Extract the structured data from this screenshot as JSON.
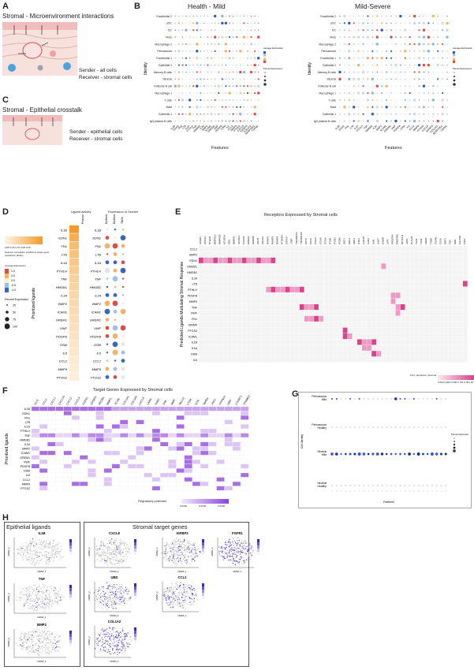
{
  "panels": {
    "A": "A",
    "B": "B",
    "C": "C",
    "D": "D",
    "E": "E",
    "F": "F",
    "G": "G",
    "H": "H"
  },
  "A": {
    "title": "Stromal - Microenvironment interactions",
    "sender": "Sender - all cells",
    "receiver": "Receiver - stromal cells"
  },
  "C": {
    "title": "Stromal - Epithelial crosstalk",
    "sender": "Sender - epithelial cells",
    "receiver": "Receiver - stromal cells"
  },
  "B": {
    "left_title": "Health - Mild",
    "right_title": "Mild-Severe",
    "ylabel": "Identity",
    "xlabel": "Features",
    "rows": [
      "Endothelial 2",
      "pDC",
      "DC",
      "TAOs",
      "Macrophage 2",
      "Perivascular",
      "Endothelial 1",
      "Epithelial 2",
      "Memory B cells",
      "Stromal",
      "Follicular B cell",
      "Macrophage 1",
      "T cells",
      "Mast",
      "Epithelial 1",
      "IgG plasma B cells"
    ],
    "left_features": [
      "IL1B",
      "EDN1",
      "FN1",
      "LTB",
      "IL1A",
      "PTHLH",
      "TNF",
      "HMGB1",
      "IL34",
      "BMP2",
      "ICAM1",
      "GREM1",
      "VWF",
      "PDGFB",
      "OSM",
      "IL6",
      "CCL2",
      "MMP9",
      "PTGS2",
      "CXCL8",
      "IGFBP3",
      "COL1A2",
      "SERPINE1",
      "TGFB1"
    ],
    "right_features": [
      "IL1B",
      "EDN1",
      "FN1",
      "LTB",
      "IL1A",
      "PTHLH",
      "TNF",
      "HMGB1",
      "IL34",
      "BMP2",
      "ICAM1",
      "GREM1",
      "VWF",
      "PDGFB",
      "OSM",
      "IL6",
      "CCL2",
      "MMP9",
      "PTGS2",
      "CXCL8",
      "IGFBP3",
      "COL1A2",
      "SERPINE1",
      "TGFB1"
    ],
    "legend_avg": "Average Expression",
    "legend_pct": "Percent Expressed"
  },
  "D": {
    "col_ligand": "Ligand activity",
    "col_expr": "Expression in Sender",
    "pearson_label": "Pearson",
    "senders": [
      "Epithelial 1",
      "Epithelial 2",
      "TAOs"
    ],
    "ylabel": "Prioritized ligands",
    "ligands": [
      "IL1B",
      "EDN1",
      "FN1",
      "LTB",
      "IL1A",
      "PTHLH",
      "TNF",
      "HMGB1",
      "IL34",
      "BMP2",
      "ICAM1",
      "GREM1",
      "VWF",
      "PDGFB",
      "OSM",
      "IL6",
      "CCL2",
      "MMP9",
      "PTGS2"
    ],
    "pearson": [
      0.085,
      0.078,
      0.072,
      0.07,
      0.068,
      0.066,
      0.064,
      0.063,
      0.062,
      0.061,
      0.06,
      0.059,
      0.058,
      0.057,
      0.056,
      0.055,
      0.054,
      0.053,
      0.052
    ],
    "pearson_ticks": "0.05 0.06 0.07 0.08 0.09",
    "pearson_legend": "Pearson correlation coefficient target gene (prediction ability)",
    "avg_legend": "Average Expression",
    "avg_ticks": [
      "1.0",
      "0.5",
      "0.0",
      "-0.5",
      "-1.0"
    ],
    "pct_legend": "Percent Expressed",
    "pct_ticks": [
      "25",
      "50",
      "75",
      "100"
    ]
  },
  "E": {
    "title": "Receptors Expressed by Stromal cells",
    "ylabel": "Predicted Ligands Modulating Stromal Response",
    "ligands": [
      "CCL2",
      "BMP2",
      "EDN1",
      "GREM1",
      "HMGB1",
      "IL34",
      "LTB",
      "PTHLH",
      "PDGFB",
      "MMP9",
      "TNF",
      "VWF",
      "FN1",
      "IGNM4",
      "PTGS2",
      "ICAM1",
      "IL1B",
      "IL1A",
      "OSM",
      "IL6"
    ],
    "receptors": [
      "ACKR1",
      "CCR10",
      "PTGFR",
      "BMPR1A",
      "BMPR1B",
      "ACVR2A",
      "ENG",
      "BMPR2",
      "ACVRL1",
      "CXCR4",
      "EDNRA",
      "EDNRB",
      "CDH5",
      "ANXA2",
      "RAMP1",
      "RAMP2",
      "RAMP3",
      "PTGER2",
      "CSF1R",
      "LTBR",
      "TNFRSF1A",
      "TNFRSF1B",
      "CD74",
      "CD44",
      "ITGA4",
      "ITGA5",
      "ITGAV",
      "ITGB1",
      "ITGB3",
      "ITGB5",
      "SDC1",
      "SDC2",
      "SDC4",
      "IL1R1",
      "IL1RAP",
      "IL1R2",
      "IL6R",
      "IL6ST",
      "OSMR",
      "LIFR",
      "PDGFRA",
      "PDGFRB",
      "NOTCH1",
      "LRP1",
      "PLAUR",
      "TLR2",
      "TLR4",
      "AGER",
      "THBD",
      "C5AR1",
      "CD36",
      "NRP1",
      "F2R",
      "KDR",
      "CALCRL",
      "CSF1"
    ],
    "legend": "Prior interaction potential",
    "legend_ticks": "0.000 0.250 0.500 0.751 0.001 20"
  },
  "F": {
    "title": "Target Genes Expressed by Stromal cells",
    "ylabel": "Prioritized ligands",
    "ligands": [
      "IL1B",
      "EDN1",
      "FN1",
      "LTB",
      "IL1A",
      "PTHLH",
      "TNF",
      "HMGB1",
      "IL34",
      "BMP2",
      "ICAM1",
      "GREM1",
      "VWF",
      "PDGFB",
      "OSM",
      "IL6",
      "CCL2",
      "MMP9",
      "PTGS2"
    ],
    "targets": [
      "ICLS",
      "CCL2",
      "CXCL1",
      "CXCL10",
      "CXCL2",
      "CXCL3",
      "FGFR1",
      "IGFBP3",
      "IRF2B1",
      "MMP1",
      "VCAN",
      "COL1A1",
      "COL1A2",
      "CXCL8",
      "LAMA",
      "KAB2",
      "VIM",
      "MMP",
      "PALLD",
      "CTSK",
      "ECN",
      "INHBA",
      "JAG1",
      "PTPN14",
      "UBD",
      "CTHRC1",
      "STBMD2"
    ],
    "legend": "Regulatory potential",
    "legend_ticks": [
      "0.0000",
      "0.0045",
      "0.0090"
    ]
  },
  "G": {
    "rows": [
      "Perivascular Mild",
      "Perivascular Healthy",
      "Stromal Mild",
      "Stromal Healthy"
    ],
    "ylabel": "Cell Identity",
    "xlabel": "Features",
    "legend": "Percent Expressed"
  },
  "H": {
    "left_title": "Epithelial ligands",
    "right_title": "Stromal target genes",
    "left_genes": [
      "IL1B",
      "TNF",
      "BMP2"
    ],
    "right_genes": [
      "CXCL8",
      "IGFBP3",
      "FGFR1",
      "UBD",
      "CCL2",
      "COL1A2"
    ],
    "axis_x": "UMAP_1",
    "axis_y": "UMAP_2"
  },
  "colors": {
    "orange": "#f39c2b",
    "magenta": "#d6448a",
    "purple": "#8a45d8",
    "blue": "#2b3fb0",
    "red": "#d32f2f"
  }
}
